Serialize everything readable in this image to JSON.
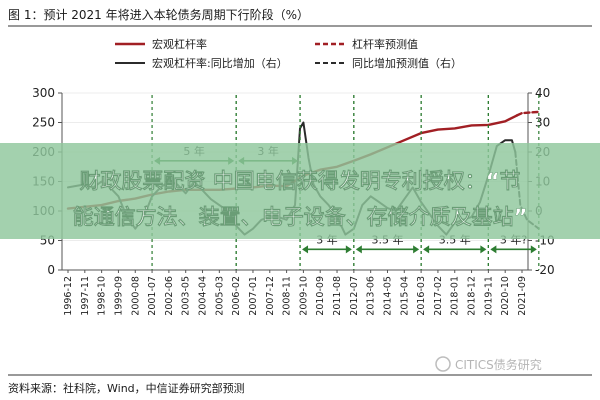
{
  "figure": {
    "title": "图 1：预计 2021 年将进入本轮债务周期下行阶段（%）",
    "source": "资料来源：社科院，Wind，中信证券研究部预测",
    "watermark": "CITICS债务研究",
    "colors": {
      "leverage": "#a11f24",
      "yoy": "#2b2b2b",
      "annotation": "#2e7d32",
      "banner_bg": "#8fc79c",
      "banner_text": "#ffffff",
      "axis": "#555555",
      "grid": "#e6e6e6"
    }
  },
  "banner": {
    "line1": "财政股票配资 中国电信获得发明专利授权：“节",
    "line2": "能通信方法、装置、电子设备、存储介质及基站”"
  },
  "chart_data": {
    "type": "line",
    "x_ticks": [
      "1996-12",
      "1997-11",
      "1998-10",
      "1999-09",
      "2000-08",
      "2001-07",
      "2002-06",
      "2003-05",
      "2004-04",
      "2005-03",
      "2006-02",
      "2007-01",
      "2007-12",
      "2008-11",
      "2009-10",
      "2010-09",
      "2011-08",
      "2012-07",
      "2013-06",
      "2014-05",
      "2015-04",
      "2016-03",
      "2017-02",
      "2018-01",
      "2018-12",
      "2019-11",
      "2020-10",
      "2021-09"
    ],
    "y_left": {
      "lim": [
        0,
        300
      ],
      "ticks": [
        0,
        50,
        100,
        150,
        200,
        250,
        300
      ]
    },
    "y_right": {
      "lim": [
        -20,
        40
      ],
      "ticks": [
        -20,
        -10,
        0,
        10,
        20,
        30,
        40
      ]
    },
    "legend": [
      {
        "label": "宏观杠杆率",
        "style": "solid",
        "color": "#a11f24",
        "axis": "left"
      },
      {
        "label": "杠杆率预测值",
        "style": "dashed",
        "color": "#a11f24",
        "axis": "left"
      },
      {
        "label": "宏观杠杆率:同比增加（右）",
        "style": "solid",
        "color": "#2b2b2b",
        "axis": "right"
      },
      {
        "label": "同比增加预测值（右）",
        "style": "dashed",
        "color": "#2b2b2b",
        "axis": "right"
      }
    ],
    "series": [
      {
        "name": "宏观杠杆率",
        "axis": "left",
        "style": "solid",
        "color": "#a11f24",
        "points": [
          [
            0,
            104
          ],
          [
            2,
            110
          ],
          [
            3,
            117
          ],
          [
            4,
            121
          ],
          [
            5,
            128
          ],
          [
            6,
            133
          ],
          [
            7,
            136
          ],
          [
            8,
            136
          ],
          [
            9,
            136
          ],
          [
            10,
            138
          ],
          [
            11,
            140
          ],
          [
            12,
            143
          ],
          [
            13,
            142
          ],
          [
            14,
            160
          ],
          [
            15,
            170
          ],
          [
            16,
            175
          ],
          [
            17,
            185
          ],
          [
            18,
            196
          ],
          [
            19,
            208
          ],
          [
            20,
            220
          ],
          [
            21,
            232
          ],
          [
            22,
            238
          ],
          [
            23,
            240
          ],
          [
            24,
            245
          ],
          [
            25,
            246
          ],
          [
            26,
            252
          ],
          [
            26.7,
            262
          ]
        ]
      },
      {
        "name": "杠杆率预测值",
        "axis": "left",
        "style": "dashed",
        "color": "#a11f24",
        "points": [
          [
            26.7,
            262
          ],
          [
            27,
            266
          ],
          [
            28,
            268
          ]
        ]
      },
      {
        "name": "宏观杠杆率:同比增加（右）",
        "axis": "right",
        "style": "solid",
        "color": "#2b2b2b",
        "points": [
          [
            0,
            8
          ],
          [
            1,
            9
          ],
          [
            1.5,
            8
          ],
          [
            2,
            10
          ],
          [
            2.5,
            8
          ],
          [
            3,
            5
          ],
          [
            3.5,
            -2
          ],
          [
            4,
            -6
          ],
          [
            4.5,
            -2
          ],
          [
            5,
            5
          ],
          [
            5.5,
            8
          ],
          [
            6,
            10
          ],
          [
            6.5,
            9
          ],
          [
            7,
            6
          ],
          [
            7.5,
            10
          ],
          [
            8,
            7
          ],
          [
            8.5,
            4
          ],
          [
            9,
            2
          ],
          [
            9.5,
            0
          ],
          [
            10,
            -5
          ],
          [
            10.5,
            -8
          ],
          [
            11,
            -6
          ],
          [
            11.5,
            -3
          ],
          [
            12,
            -2
          ],
          [
            12.5,
            -2
          ],
          [
            13,
            -3
          ],
          [
            13.5,
            2
          ],
          [
            13.8,
            28
          ],
          [
            14,
            30
          ],
          [
            14.3,
            18
          ],
          [
            14.6,
            9
          ],
          [
            15,
            5
          ],
          [
            15.5,
            2
          ],
          [
            16,
            -2
          ],
          [
            16.5,
            -8
          ],
          [
            17,
            -6
          ],
          [
            17.5,
            2
          ],
          [
            18,
            5
          ],
          [
            18.5,
            3
          ],
          [
            19,
            1
          ],
          [
            19.5,
            0
          ],
          [
            20,
            4
          ],
          [
            20.5,
            8
          ],
          [
            21,
            3
          ],
          [
            21.5,
            -1
          ],
          [
            22,
            -5
          ],
          [
            22.5,
            -8
          ],
          [
            23,
            -4
          ],
          [
            23.5,
            -3
          ],
          [
            24,
            -2
          ],
          [
            24.5,
            3
          ],
          [
            25,
            12
          ],
          [
            25.5,
            22
          ],
          [
            26,
            24
          ],
          [
            26.4,
            24
          ],
          [
            26.6,
            20
          ]
        ]
      },
      {
        "name": "同比增加预测值（右）",
        "axis": "right",
        "style": "dashed",
        "color": "#2b2b2b",
        "points": [
          [
            26.6,
            20
          ],
          [
            26.9,
            2
          ],
          [
            27.3,
            -3
          ],
          [
            28,
            -6
          ]
        ]
      }
    ],
    "annotations": [
      {
        "text": "5 年",
        "x_start": 5,
        "x_end": 10,
        "level": 17
      },
      {
        "text": "3 年",
        "x_start": 10,
        "x_end": 13.8,
        "level": 17
      },
      {
        "text": "3 年",
        "x_start": 13.8,
        "x_end": 17,
        "level": -13
      },
      {
        "text": "3.5 年",
        "x_start": 17,
        "x_end": 21,
        "level": -13
      },
      {
        "text": "3.5 年",
        "x_start": 21,
        "x_end": 25,
        "level": -13
      },
      {
        "text": "3 年?",
        "x_start": 25,
        "x_end": 28,
        "level": -13
      }
    ]
  }
}
